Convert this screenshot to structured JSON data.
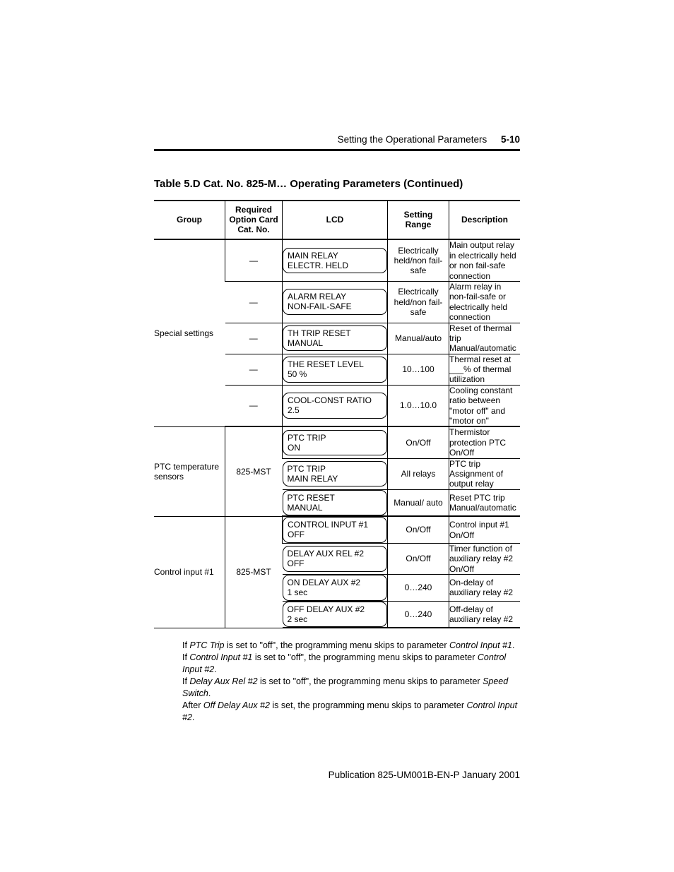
{
  "header": {
    "title": "Setting the Operational Parameters",
    "page_number": "5-10"
  },
  "table": {
    "caption": "Table 5.D Cat. No. 825-M… Operating Parameters (Continued)",
    "columns": {
      "group": "Group",
      "required": "Required Option Card Cat. No.",
      "lcd": "LCD",
      "range": "Setting Range",
      "description": "Description"
    },
    "groups": [
      {
        "name": "Special settings",
        "required": "—",
        "rows": [
          {
            "lcd1": "MAIN RELAY",
            "lcd2": "ELECTR. HELD",
            "range": "Electrically held/non fail-safe",
            "desc": "Main output relay in electrically held or non fail-safe connection"
          },
          {
            "lcd1": "ALARM RELAY",
            "lcd2": "NON-FAIL-SAFE",
            "range": "Electrically held/non fail-safe",
            "desc": "Alarm relay in non-fail-safe or electrically held connection"
          },
          {
            "lcd1": "TH TRIP RESET",
            "lcd2": "MANUAL",
            "range": "Manual/auto",
            "desc": "Reset of thermal trip Manual/automatic"
          },
          {
            "lcd1": "THE RESET LEVEL",
            "lcd2": "50 %",
            "range": "10…100",
            "desc": "Thermal reset at ___% of thermal utilization"
          },
          {
            "lcd1": "COOL-CONST RATIO",
            "lcd2": "2.5",
            "range": "1.0…10.0",
            "desc": "Cooling constant ratio between \"motor off\" and \"motor on\""
          }
        ]
      },
      {
        "name": "PTC temperature sensors",
        "required": "825-MST",
        "rows": [
          {
            "lcd1": "PTC TRIP",
            "lcd2": "ON",
            "range": "On/Off",
            "desc": "Thermistor protection PTC On/Off"
          },
          {
            "lcd1": "PTC TRIP",
            "lcd2": "MAIN RELAY",
            "range": "All relays",
            "desc": "PTC trip\nAssignment of output relay"
          },
          {
            "lcd1": "PTC RESET",
            "lcd2": "MANUAL",
            "range": "Manual/ auto",
            "desc": "Reset PTC trip Manual/automatic"
          }
        ]
      },
      {
        "name": "Control input #1",
        "required": "825-MST",
        "rows": [
          {
            "lcd1": "CONTROL INPUT #1",
            "lcd2": "OFF",
            "range": "On/Off",
            "desc": "Control input #1\nOn/Off"
          },
          {
            "lcd1": "DELAY AUX REL #2",
            "lcd2": "OFF",
            "range": "On/Off",
            "desc": "Timer function of auxiliary relay #2\nOn/Off"
          },
          {
            "lcd1": "ON DELAY AUX #2",
            "lcd2": "1 sec",
            "range": "0…240",
            "desc": "On-delay of auxiliary relay #2"
          },
          {
            "lcd1": "OFF DELAY AUX #2",
            "lcd2": "2 sec",
            "range": "0…240",
            "desc": "Off-delay of auxiliary relay #2"
          }
        ]
      }
    ]
  },
  "footnotes": [
    {
      "pre": "If ",
      "em": "PTC Trip",
      "post": " is set to \"off\", the programming menu skips to parameter ",
      "em2": "Control Input #1",
      "post2": "."
    },
    {
      "pre": "If ",
      "em": "Control Input #1",
      "post": " is set to \"off\", the programming menu skips to parameter ",
      "em2": "Control Input #2",
      "post2": "."
    },
    {
      "pre": "If ",
      "em": "Delay Aux Rel #2",
      "post": " is set to \"off\", the programming menu skips to parameter ",
      "em2": "Speed Switch",
      "post2": "."
    },
    {
      "pre": "After ",
      "em": "Off Delay Aux #2",
      "post": " is set, the programming menu skips to parameter ",
      "em2": "Control Input #2",
      "post2": "."
    }
  ],
  "publication": "Publication 825-UM001B-EN-P  January 2001"
}
